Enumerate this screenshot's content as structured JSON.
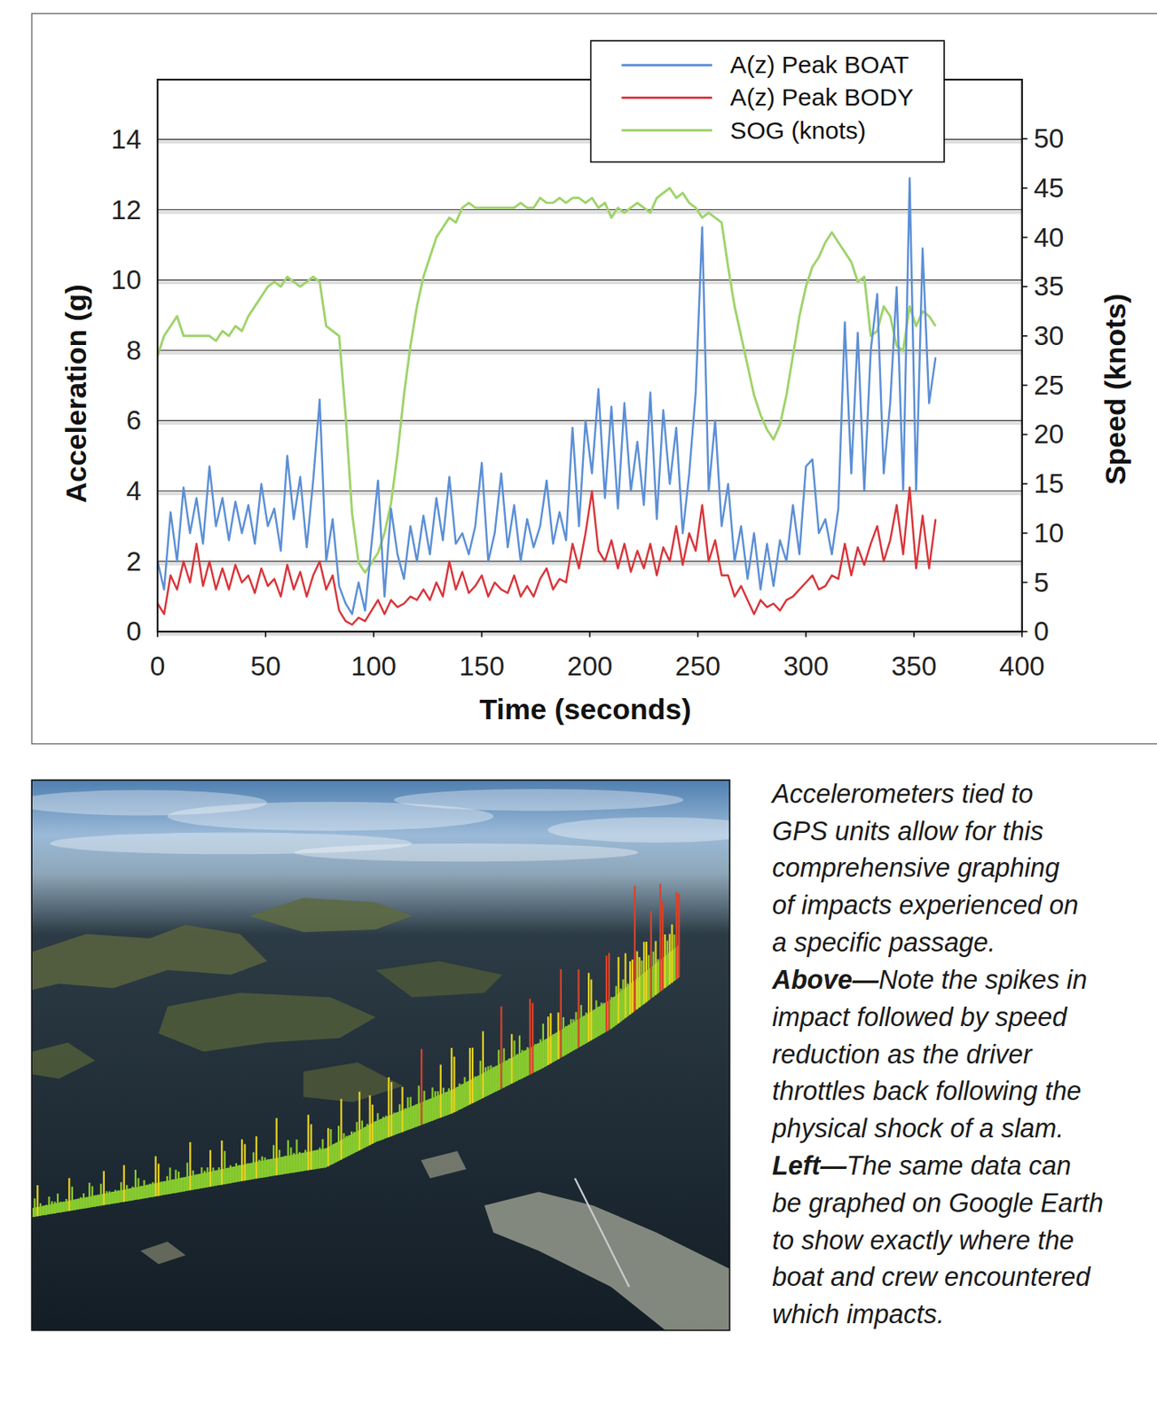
{
  "chart_data": {
    "type": "line",
    "x_label": "Time (seconds)",
    "y_label": "Acceleration (g)",
    "y2_label": "Speed (knots)",
    "x": [
      0,
      3,
      6,
      9,
      12,
      15,
      18,
      21,
      24,
      27,
      30,
      33,
      36,
      39,
      42,
      45,
      48,
      51,
      54,
      57,
      60,
      63,
      66,
      69,
      72,
      75,
      78,
      81,
      84,
      87,
      90,
      93,
      96,
      99,
      102,
      105,
      108,
      111,
      114,
      117,
      120,
      123,
      126,
      129,
      132,
      135,
      138,
      141,
      144,
      147,
      150,
      153,
      156,
      159,
      162,
      165,
      168,
      171,
      174,
      177,
      180,
      183,
      186,
      189,
      192,
      195,
      198,
      201,
      204,
      207,
      210,
      213,
      216,
      219,
      222,
      225,
      228,
      231,
      234,
      237,
      240,
      243,
      246,
      249,
      252,
      255,
      258,
      261,
      264,
      267,
      270,
      273,
      276,
      279,
      282,
      285,
      288,
      291,
      294,
      297,
      300,
      303,
      306,
      309,
      312,
      315,
      318,
      321,
      324,
      327,
      330,
      333,
      336,
      339,
      342,
      345,
      348,
      351,
      354,
      357,
      360
    ],
    "xlim": [
      0,
      400
    ],
    "xticks": [
      0,
      50,
      100,
      150,
      200,
      250,
      300,
      350,
      400
    ],
    "ylim": [
      0,
      15.7
    ],
    "yticks": [
      0,
      2,
      4,
      6,
      8,
      10,
      12,
      14
    ],
    "y2lim": [
      0,
      56
    ],
    "y2ticks": [
      0,
      5,
      10,
      15,
      20,
      25,
      30,
      35,
      40,
      45,
      50
    ],
    "grid": true,
    "legend": "top-right",
    "series": [
      {
        "name": "A(z) Peak BOAT",
        "color": "#5b8fd6",
        "values": [
          2.0,
          1.2,
          3.4,
          2.0,
          4.1,
          2.8,
          3.8,
          2.5,
          4.7,
          3.0,
          3.8,
          2.6,
          3.7,
          2.8,
          3.6,
          2.5,
          4.2,
          3.0,
          3.5,
          2.3,
          5.0,
          3.2,
          4.4,
          2.4,
          4.3,
          6.6,
          2.0,
          3.2,
          1.3,
          0.8,
          0.5,
          1.4,
          0.6,
          2.5,
          4.3,
          1.0,
          3.5,
          2.2,
          1.5,
          3.0,
          2.0,
          3.3,
          2.2,
          3.8,
          2.6,
          4.4,
          2.5,
          2.8,
          2.2,
          3.0,
          4.8,
          2.0,
          2.8,
          4.5,
          2.4,
          3.6,
          2.0,
          3.2,
          2.4,
          3.0,
          4.3,
          2.5,
          3.4,
          2.6,
          5.8,
          3.0,
          6.0,
          4.5,
          6.9,
          3.8,
          6.4,
          3.5,
          6.5,
          4.0,
          5.4,
          3.6,
          6.8,
          3.2,
          6.3,
          4.2,
          5.8,
          2.8,
          4.5,
          6.8,
          11.5,
          4.0,
          6.0,
          3.0,
          4.2,
          2.0,
          3.0,
          1.5,
          2.8,
          1.2,
          2.5,
          1.3,
          2.6,
          2.0,
          3.6,
          2.2,
          4.7,
          4.9,
          2.8,
          3.2,
          2.2,
          3.5,
          8.8,
          4.5,
          8.5,
          4.0,
          8.0,
          9.6,
          4.5,
          6.5,
          9.8,
          4.0,
          12.9,
          4.0,
          10.9,
          6.5,
          7.8
        ]
      },
      {
        "name": "A(z) Peak BODY",
        "color": "#d8353a",
        "values": [
          0.8,
          0.5,
          1.6,
          1.2,
          2.0,
          1.4,
          2.5,
          1.3,
          2.0,
          1.2,
          1.8,
          1.2,
          1.9,
          1.4,
          1.6,
          1.1,
          1.8,
          1.3,
          1.5,
          1.0,
          1.9,
          1.2,
          1.7,
          1.0,
          1.6,
          2.0,
          1.2,
          1.6,
          0.6,
          0.3,
          0.2,
          0.4,
          0.3,
          0.6,
          0.9,
          0.5,
          0.9,
          0.7,
          0.8,
          1.0,
          0.9,
          1.2,
          0.9,
          1.4,
          1.0,
          2.0,
          1.2,
          1.7,
          1.1,
          1.3,
          1.6,
          1.0,
          1.4,
          1.2,
          1.1,
          1.6,
          1.0,
          1.3,
          1.0,
          1.5,
          1.8,
          1.2,
          1.5,
          1.4,
          2.5,
          1.8,
          2.8,
          4.0,
          2.3,
          2.0,
          2.6,
          1.8,
          2.5,
          1.7,
          2.3,
          1.8,
          2.5,
          1.6,
          2.4,
          2.0,
          3.0,
          1.9,
          2.8,
          2.3,
          3.6,
          2.0,
          2.6,
          1.6,
          1.6,
          1.0,
          1.3,
          0.9,
          0.5,
          0.9,
          0.7,
          0.8,
          0.6,
          0.9,
          1.0,
          1.2,
          1.4,
          1.6,
          1.2,
          1.3,
          1.6,
          1.5,
          2.5,
          1.6,
          2.4,
          1.9,
          2.5,
          3.0,
          2.0,
          2.6,
          3.6,
          2.2,
          4.1,
          1.8,
          3.3,
          1.8,
          3.2
        ]
      },
      {
        "name": "SOG (knots)",
        "color": "#9fd36b",
        "axis": "y2",
        "values": [
          28,
          30,
          31,
          32,
          30,
          30,
          30,
          30,
          30,
          29.5,
          30.5,
          30,
          31,
          30.5,
          32,
          33,
          34,
          35,
          35.5,
          35,
          36,
          35.5,
          35,
          35.5,
          36,
          35.5,
          31,
          30.5,
          30,
          22,
          12,
          7,
          6,
          7,
          8,
          10,
          13,
          18,
          24,
          29,
          33,
          36,
          38,
          40,
          41,
          42,
          41.5,
          43,
          43.5,
          43,
          43,
          43,
          43,
          43,
          43,
          43,
          43.5,
          43,
          43,
          44,
          43.5,
          43.5,
          44,
          43.5,
          44,
          44,
          43.5,
          44,
          43,
          43.5,
          42,
          43,
          42.5,
          43,
          43.5,
          43,
          42.5,
          44,
          44.5,
          45,
          44,
          44.5,
          43.5,
          43,
          42,
          42.5,
          42,
          41.5,
          37,
          33,
          30,
          27,
          24,
          22,
          20.5,
          19.5,
          21,
          24,
          28,
          32,
          35,
          37,
          38,
          39.5,
          40.5,
          39.5,
          38.5,
          37.5,
          35.5,
          36,
          30,
          30.5,
          33,
          32,
          29,
          28.5,
          33,
          31,
          32.5,
          32,
          31
        ]
      }
    ]
  },
  "caption": {
    "lines": [
      "Accelerometers tied to",
      "GPS units allow for this",
      "comprehensive graphing",
      "of impacts experienced on",
      "a specific passage.",
      {
        "lead": "Above—",
        "text": "Note the spikes in"
      },
      "impact followed by speed",
      "reduction as the driver",
      "throttles back following the",
      "physical shock of a slam.",
      {
        "lead": "Left—",
        "text": "The same data can"
      },
      "be graphed on Google Earth",
      "to show exactly where the",
      "boat and crew encountered",
      "which impacts."
    ]
  }
}
